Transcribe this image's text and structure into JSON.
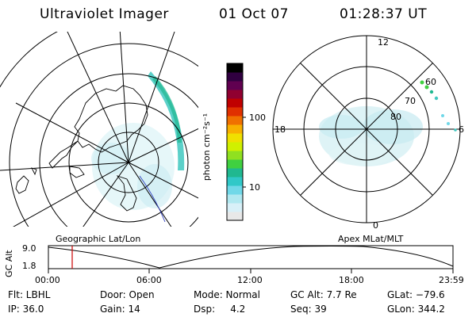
{
  "header": {
    "instrument": "Ultraviolet Imager",
    "date": "01 Oct 07",
    "time": "01:28:37 UT"
  },
  "colorbar": {
    "unit_label": "photon cm⁻²s⁻¹",
    "tick_100": "100",
    "tick_10": "10",
    "colors": [
      "#e8e8e8",
      "#d8f0f8",
      "#b0e8f0",
      "#70d8e8",
      "#30c8c8",
      "#20b890",
      "#40d040",
      "#90e020",
      "#d0f000",
      "#f0e000",
      "#f8b000",
      "#f07000",
      "#e03000",
      "#c00000",
      "#900030",
      "#600050",
      "#300040",
      "#000000"
    ]
  },
  "polar_plot": {
    "label_12": "12",
    "label_0": "0",
    "label_18": "18",
    "label_6": "6",
    "label_60": "60",
    "label_70": "70",
    "label_80": "80"
  },
  "projection_labels": {
    "left": "Geographic Lat/Lon",
    "right": "Apex MLat/MLT"
  },
  "altitude_timeline": {
    "ylabel": "GC Alt",
    "y_top": "9.0",
    "y_bottom": "1.8",
    "x_ticks": [
      "00:00",
      "06:00",
      "12:00",
      "18:00",
      "23:59"
    ],
    "marker_color": "#cc0000"
  },
  "info": {
    "flt": "Flt: LBHL",
    "ip": "IP: 36.0",
    "door": "Door: Open",
    "gain": "Gain: 14",
    "mode": "Mode: Normal",
    "dsp": "Dsp:     4.2",
    "gc_alt": "GC Alt: 7.7 Re",
    "seq": "Seq: 39",
    "glat": "GLat: −79.6",
    "glon": "GLon: 344.2"
  }
}
